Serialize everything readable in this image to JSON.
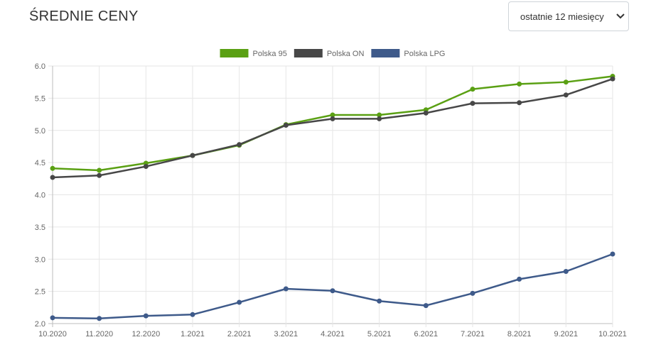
{
  "header": {
    "title": "ŚREDNIE CENY"
  },
  "period_select": {
    "value": "ostatnie 12 miesięcy",
    "icon": "chevron-down-icon"
  },
  "chart_data": {
    "type": "line",
    "title": "",
    "xlabel": "",
    "ylabel": "",
    "categories": [
      "10.2020",
      "11.2020",
      "12.2020",
      "1.2021",
      "2.2021",
      "3.2021",
      "4.2021",
      "5.2021",
      "6.2021",
      "7.2021",
      "8.2021",
      "9.2021",
      "10.2021"
    ],
    "ylim": [
      2.0,
      6.0
    ],
    "yticks": [
      "2.0",
      "2.5",
      "3.0",
      "3.5",
      "4.0",
      "4.5",
      "5.0",
      "5.5",
      "6.0"
    ],
    "grid": true,
    "legend": "top-center",
    "series": [
      {
        "name": "Polska 95",
        "color": "#5aa013",
        "values": [
          4.41,
          4.38,
          4.49,
          4.61,
          4.77,
          5.09,
          5.24,
          5.24,
          5.32,
          5.64,
          5.72,
          5.75,
          5.84
        ]
      },
      {
        "name": "Polska ON",
        "color": "#474747",
        "values": [
          4.27,
          4.3,
          4.44,
          4.61,
          4.78,
          5.08,
          5.18,
          5.18,
          5.27,
          5.42,
          5.43,
          5.55,
          5.8
        ]
      },
      {
        "name": "Polska LPG",
        "color": "#3e5a8a",
        "values": [
          2.09,
          2.08,
          2.12,
          2.14,
          2.33,
          2.54,
          2.51,
          2.35,
          2.28,
          2.47,
          2.69,
          2.81,
          3.08
        ]
      }
    ]
  }
}
